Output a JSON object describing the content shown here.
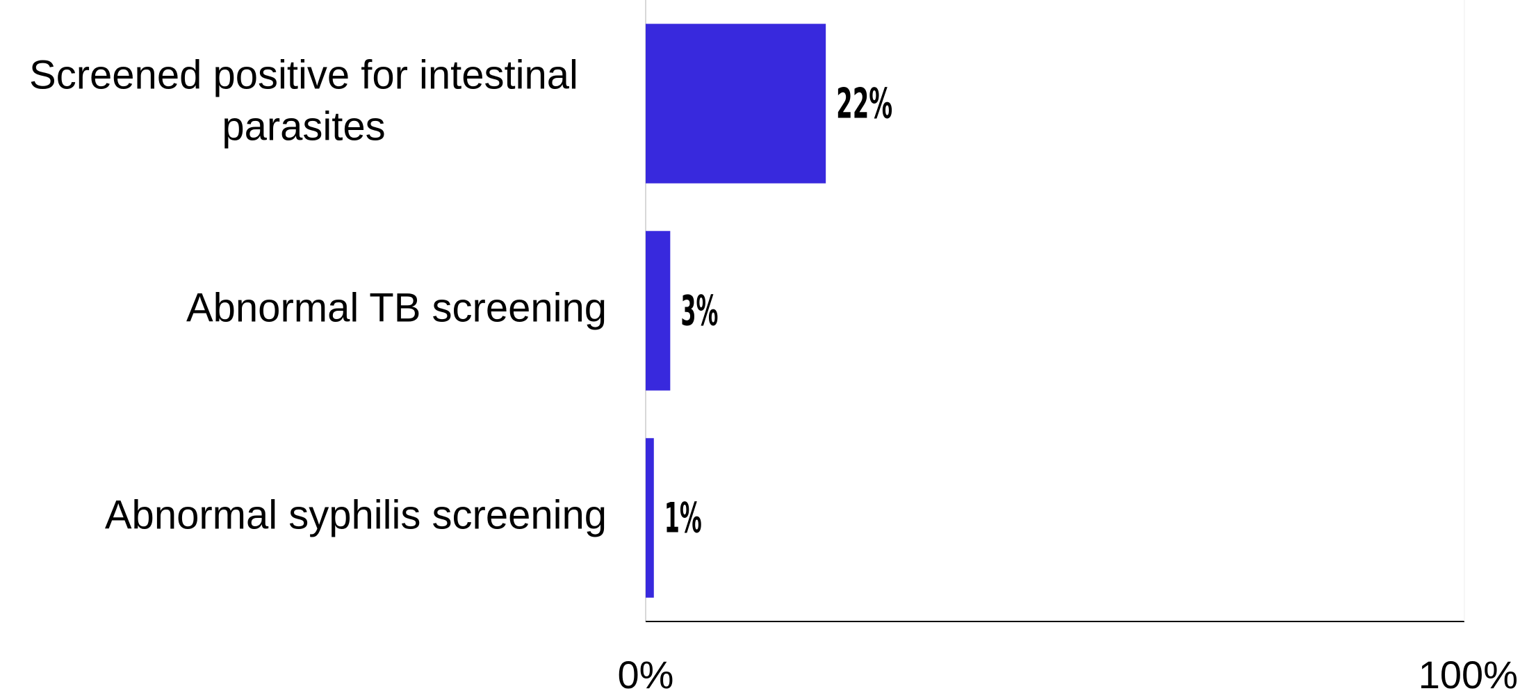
{
  "chart_data": {
    "type": "bar",
    "orientation": "horizontal",
    "categories": [
      [
        "Screened positive for intestinal",
        "parasites"
      ],
      [
        "Abnormal TB screening"
      ],
      [
        "Abnormal syphilis screening"
      ]
    ],
    "values": [
      22,
      3,
      1
    ],
    "value_labels": [
      "22%",
      "3%",
      "1%"
    ],
    "xlim": [
      0,
      100
    ],
    "x_ticks": [
      {
        "value": 0,
        "label": "0%"
      },
      {
        "value": 100,
        "label": "100%"
      }
    ],
    "grid": false,
    "legend": "none",
    "bar_color": "#3829dd",
    "axis_color": "#000000",
    "baseline_color": "#cccccc"
  }
}
